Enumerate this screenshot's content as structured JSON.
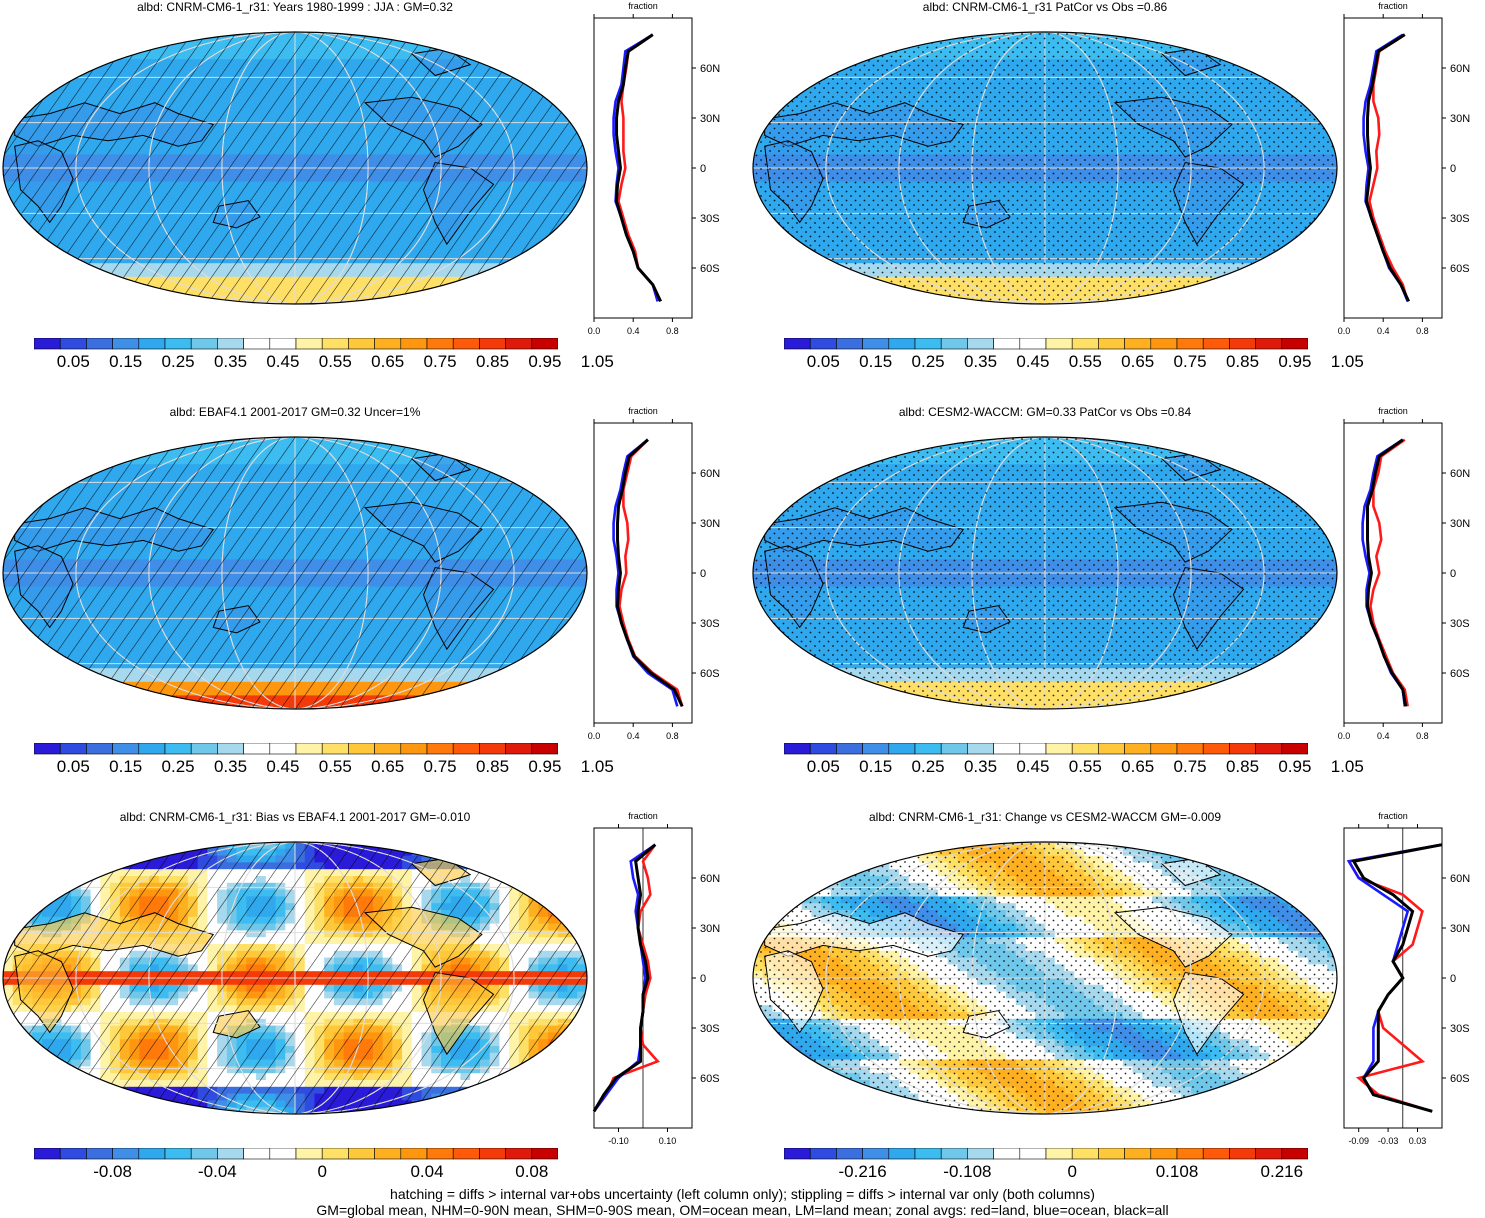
{
  "palette_colors": [
    "#2a1bd8",
    "#2f4be0",
    "#3b6fe0",
    "#3f8ee8",
    "#2fa8ee",
    "#3cbcf0",
    "#6fc7ea",
    "#a6d8ee",
    "#ffffff",
    "#ffffff",
    "#fff3a8",
    "#ffe066",
    "#ffc83a",
    "#ffb020",
    "#ff9610",
    "#ff7a0a",
    "#ff5a0a",
    "#f53a0a",
    "#e01a0a",
    "#c80000"
  ],
  "panels": [
    {
      "id": "p1",
      "title": "albd: CNRM-CM6-1_r31: Years 1980-1999 : JJA : GM=0.32",
      "map_type": "field",
      "overlay": "hatch",
      "colorbar_labels": [
        "0.05",
        "0.15",
        "0.25",
        "0.35",
        "0.45",
        "0.55",
        "0.65",
        "0.75",
        "0.85",
        "0.95",
        "1.05"
      ],
      "zonal": {
        "header": "fraction",
        "x_ticks": [
          "0.0",
          "0.4",
          "0.8"
        ],
        "lat_ticks": [
          "60N",
          "30N",
          "0",
          "30S",
          "60S"
        ]
      }
    },
    {
      "id": "p2",
      "title": "albd: CNRM-CM6-1_r31 PatCor vs Obs =0.86",
      "map_type": "field",
      "overlay": "stipple",
      "colorbar_labels": [
        "0.05",
        "0.15",
        "0.25",
        "0.35",
        "0.45",
        "0.55",
        "0.65",
        "0.75",
        "0.85",
        "0.95",
        "1.05"
      ],
      "zonal": {
        "header": "fraction",
        "x_ticks": [
          "0.0",
          "0.4",
          "0.8"
        ],
        "lat_ticks": [
          "60N",
          "30N",
          "0",
          "30S",
          "60S"
        ]
      }
    },
    {
      "id": "p3",
      "title": "albd: EBAF4.1 2001-2017 GM=0.32 Uncer=1%",
      "map_type": "field_obs",
      "overlay": "hatch",
      "colorbar_labels": [
        "0.05",
        "0.15",
        "0.25",
        "0.35",
        "0.45",
        "0.55",
        "0.65",
        "0.75",
        "0.85",
        "0.95",
        "1.05"
      ],
      "zonal": {
        "header": "fraction",
        "x_ticks": [
          "0.0",
          "0.4",
          "0.8"
        ],
        "lat_ticks": [
          "60N",
          "30N",
          "0",
          "30S",
          "60S"
        ]
      }
    },
    {
      "id": "p4",
      "title": "albd: CESM2-WACCM: GM=0.33 PatCor vs Obs =0.84",
      "map_type": "field",
      "overlay": "stipple",
      "colorbar_labels": [
        "0.05",
        "0.15",
        "0.25",
        "0.35",
        "0.45",
        "0.55",
        "0.65",
        "0.75",
        "0.85",
        "0.95",
        "1.05"
      ],
      "zonal": {
        "header": "fraction",
        "x_ticks": [
          "0.0",
          "0.4",
          "0.8"
        ],
        "lat_ticks": [
          "60N",
          "30N",
          "0",
          "30S",
          "60S"
        ]
      }
    },
    {
      "id": "p5",
      "title": "albd: CNRM-CM6-1_r31: Bias vs EBAF4.1 2001-2017 GM=-0.010",
      "map_type": "bias",
      "overlay": "hatch",
      "colorbar_labels": [
        "-0.08",
        "-0.04",
        "0",
        "0.04",
        "0.08"
      ],
      "zonal": {
        "header": "fraction",
        "x_ticks": [
          "-0.10",
          "0.10"
        ],
        "lat_ticks": [
          "60N",
          "30N",
          "0",
          "30S",
          "60S"
        ]
      }
    },
    {
      "id": "p6",
      "title": "albd: CNRM-CM6-1_r31: Change vs CESM2-WACCM GM=-0.009",
      "map_type": "change",
      "overlay": "stipple",
      "colorbar_labels": [
        "-0.216",
        "-0.108",
        "0",
        "0.108",
        "0.216"
      ],
      "zonal": {
        "header": "fraction",
        "x_ticks": [
          "-0.09",
          "-0.03",
          "0.03"
        ],
        "lat_ticks": [
          "60N",
          "30N",
          "0",
          "30S",
          "60S"
        ]
      }
    }
  ],
  "footer": {
    "line1": "hatching = diffs > internal var+obs uncertainty (left column only); stippling = diffs > internal var only (both columns)",
    "line2": "GM=global mean, NHM=0-90N mean, SHM=0-90S mean, OM=ocean mean, LM=land mean; zonal avgs: red=land, blue=ocean, black=all"
  },
  "chart_data": [
    {
      "type": "line",
      "title": "albd: CNRM-CM6-1_r31: Years 1980-1999 : JJA : GM=0.32",
      "xlabel": "fraction",
      "ylabel": "",
      "xlim": [
        0,
        1
      ],
      "ylim": [
        -90,
        90
      ],
      "y": [
        -80,
        -70,
        -60,
        -50,
        -40,
        -30,
        -20,
        -10,
        0,
        10,
        20,
        30,
        40,
        50,
        60,
        70,
        80
      ],
      "series": [
        {
          "name": "red=land",
          "values": [
            0.65,
            0.6,
            0.45,
            0.42,
            0.35,
            0.3,
            0.25,
            0.28,
            0.32,
            0.3,
            0.3,
            0.3,
            0.28,
            0.3,
            0.33,
            0.35,
            0.6
          ]
        },
        {
          "name": "blue=ocean",
          "values": [
            0.65,
            0.6,
            0.45,
            0.4,
            0.33,
            0.28,
            0.22,
            0.23,
            0.25,
            0.22,
            0.2,
            0.2,
            0.22,
            0.28,
            0.3,
            0.32,
            0.6
          ]
        },
        {
          "name": "black=all",
          "values": [
            0.68,
            0.6,
            0.45,
            0.4,
            0.33,
            0.28,
            0.23,
            0.24,
            0.27,
            0.25,
            0.23,
            0.23,
            0.25,
            0.3,
            0.32,
            0.35,
            0.6
          ]
        }
      ]
    },
    {
      "type": "line",
      "title": "albd: CNRM-CM6-1_r31 PatCor vs Obs =0.86",
      "xlabel": "fraction",
      "ylabel": "",
      "xlim": [
        0,
        1
      ],
      "ylim": [
        -90,
        90
      ],
      "y": [
        -80,
        -70,
        -60,
        -50,
        -40,
        -30,
        -20,
        -10,
        0,
        10,
        20,
        30,
        40,
        50,
        60,
        70,
        80
      ],
      "series": [
        {
          "name": "red=land",
          "values": [
            0.65,
            0.6,
            0.5,
            0.42,
            0.36,
            0.3,
            0.26,
            0.3,
            0.34,
            0.33,
            0.36,
            0.35,
            0.3,
            0.3,
            0.33,
            0.36,
            0.62
          ]
        },
        {
          "name": "blue=ocean",
          "values": [
            0.65,
            0.58,
            0.46,
            0.4,
            0.34,
            0.28,
            0.22,
            0.23,
            0.25,
            0.22,
            0.2,
            0.2,
            0.22,
            0.27,
            0.3,
            0.33,
            0.6
          ]
        },
        {
          "name": "black=all",
          "values": [
            0.66,
            0.58,
            0.47,
            0.4,
            0.34,
            0.28,
            0.23,
            0.25,
            0.27,
            0.25,
            0.24,
            0.24,
            0.25,
            0.29,
            0.32,
            0.35,
            0.62
          ]
        }
      ]
    },
    {
      "type": "line",
      "title": "albd: EBAF4.1 2001-2017 GM=0.32 Uncer=1%",
      "xlabel": "fraction",
      "ylabel": "",
      "xlim": [
        0,
        1
      ],
      "ylim": [
        -90,
        90
      ],
      "y": [
        -80,
        -70,
        -60,
        -50,
        -40,
        -30,
        -20,
        -10,
        0,
        10,
        20,
        30,
        40,
        50,
        60,
        70,
        80
      ],
      "series": [
        {
          "name": "red=land",
          "values": [
            0.9,
            0.85,
            0.6,
            0.42,
            0.35,
            0.3,
            0.26,
            0.28,
            0.33,
            0.32,
            0.35,
            0.34,
            0.3,
            0.3,
            0.34,
            0.38,
            0.55
          ]
        },
        {
          "name": "blue=ocean",
          "values": [
            0.85,
            0.8,
            0.55,
            0.4,
            0.34,
            0.28,
            0.23,
            0.23,
            0.25,
            0.23,
            0.2,
            0.2,
            0.22,
            0.27,
            0.3,
            0.34,
            0.55
          ]
        },
        {
          "name": "black=all",
          "values": [
            0.9,
            0.82,
            0.58,
            0.41,
            0.34,
            0.28,
            0.24,
            0.25,
            0.27,
            0.25,
            0.24,
            0.24,
            0.25,
            0.29,
            0.32,
            0.36,
            0.55
          ]
        }
      ]
    },
    {
      "type": "line",
      "title": "albd: CESM2-WACCM: GM=0.33 PatCor vs Obs =0.84",
      "xlabel": "fraction",
      "ylabel": "",
      "xlim": [
        0,
        1
      ],
      "ylim": [
        -90,
        90
      ],
      "y": [
        -80,
        -70,
        -60,
        -50,
        -40,
        -30,
        -20,
        -10,
        0,
        10,
        20,
        30,
        40,
        50,
        60,
        70,
        80
      ],
      "series": [
        {
          "name": "red=land",
          "values": [
            0.65,
            0.62,
            0.5,
            0.43,
            0.36,
            0.3,
            0.27,
            0.3,
            0.36,
            0.33,
            0.38,
            0.36,
            0.3,
            0.3,
            0.35,
            0.38,
            0.62
          ]
        },
        {
          "name": "blue=ocean",
          "values": [
            0.62,
            0.6,
            0.48,
            0.41,
            0.35,
            0.28,
            0.23,
            0.23,
            0.26,
            0.22,
            0.19,
            0.19,
            0.21,
            0.27,
            0.3,
            0.34,
            0.6
          ]
        },
        {
          "name": "black=all",
          "values": [
            0.63,
            0.6,
            0.49,
            0.41,
            0.35,
            0.28,
            0.24,
            0.25,
            0.28,
            0.25,
            0.24,
            0.24,
            0.24,
            0.29,
            0.32,
            0.36,
            0.6
          ]
        }
      ]
    },
    {
      "type": "line",
      "title": "albd: CNRM-CM6-1_r31: Bias vs EBAF4.1 2001-2017 GM=-0.010",
      "xlabel": "fraction",
      "ylabel": "",
      "xlim": [
        -0.2,
        0.2
      ],
      "ylim": [
        -90,
        90
      ],
      "y": [
        -80,
        -70,
        -60,
        -50,
        -40,
        -30,
        -20,
        -10,
        0,
        10,
        20,
        30,
        40,
        50,
        60,
        70,
        80
      ],
      "series": [
        {
          "name": "red=land",
          "values": [
            -0.2,
            -0.15,
            -0.12,
            0.06,
            0.0,
            -0.01,
            0.0,
            0.01,
            0.03,
            0.02,
            0.0,
            -0.02,
            -0.01,
            0.03,
            0.02,
            0.0,
            0.05
          ]
        },
        {
          "name": "blue=ocean",
          "values": [
            -0.2,
            -0.15,
            -0.1,
            -0.02,
            -0.01,
            -0.01,
            0.0,
            0.0,
            0.01,
            0.0,
            -0.01,
            -0.02,
            -0.03,
            -0.02,
            -0.04,
            -0.05,
            0.05
          ]
        },
        {
          "name": "black=all",
          "values": [
            -0.2,
            -0.16,
            -0.11,
            -0.01,
            -0.01,
            -0.01,
            0.0,
            0.0,
            0.02,
            0.01,
            -0.01,
            -0.02,
            -0.02,
            -0.01,
            -0.02,
            -0.03,
            0.05
          ]
        }
      ]
    },
    {
      "type": "line",
      "title": "albd: CNRM-CM6-1_r31: Change vs CESM2-WACCM GM=-0.009",
      "xlabel": "fraction",
      "ylabel": "",
      "xlim": [
        -0.12,
        0.08
      ],
      "ylim": [
        -90,
        90
      ],
      "y": [
        -80,
        -70,
        -60,
        -50,
        -40,
        -30,
        -20,
        -10,
        0,
        10,
        20,
        30,
        40,
        50,
        60,
        70,
        80
      ],
      "series": [
        {
          "name": "red=land",
          "values": [
            0.06,
            -0.05,
            -0.09,
            0.04,
            0.0,
            -0.04,
            -0.05,
            -0.03,
            0.0,
            -0.02,
            0.02,
            0.03,
            0.04,
            0.0,
            -0.09,
            -0.11,
            0.08
          ]
        },
        {
          "name": "blue=ocean",
          "values": [
            0.06,
            -0.06,
            -0.08,
            -0.06,
            -0.06,
            -0.06,
            -0.05,
            -0.03,
            0.0,
            -0.02,
            -0.01,
            0.0,
            0.01,
            -0.04,
            -0.09,
            -0.11,
            0.08
          ]
        },
        {
          "name": "black=all",
          "values": [
            0.06,
            -0.06,
            -0.08,
            -0.05,
            -0.05,
            -0.05,
            -0.05,
            -0.03,
            0.0,
            -0.02,
            0.0,
            0.01,
            0.02,
            -0.02,
            -0.08,
            -0.1,
            0.08
          ]
        }
      ]
    }
  ]
}
